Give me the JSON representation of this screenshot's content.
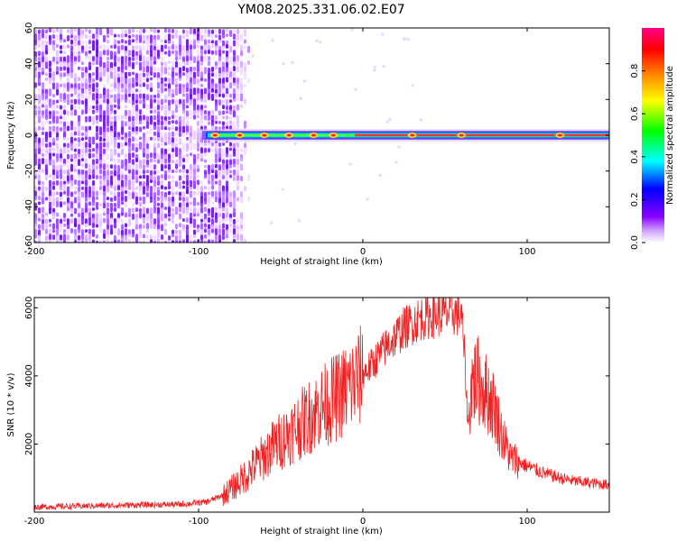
{
  "title": "YM08.2025.331.06.02.E07",
  "chart_data": [
    {
      "type": "heatmap",
      "title": "YM08.2025.331.06.02.E07",
      "xlabel": "Height of straight line (km)",
      "ylabel": "Frequency (Hz)",
      "xlim": [
        -200,
        150
      ],
      "ylim": [
        -60,
        60
      ],
      "xticks": [
        -200,
        -100,
        0,
        100
      ],
      "xtick_labels": [
        "-200",
        "-100",
        "0",
        "100"
      ],
      "yticks": [
        -60,
        -40,
        -20,
        0,
        20,
        40,
        60
      ],
      "ytick_labels": [
        "-60",
        "-40",
        "-20",
        "0",
        "20",
        "40",
        "60"
      ],
      "noise_region_x": [
        -200,
        -78
      ],
      "signal_line_y": 0,
      "signal_start_x": -100,
      "colorbar": {
        "label": "Normalized spectral amplitude",
        "range": [
          0,
          1
        ],
        "ticks": [
          0.0,
          0.2,
          0.4,
          0.6,
          0.8
        ],
        "tick_labels": [
          "0.0",
          "0.2",
          "0.4",
          "0.6",
          "0.8"
        ],
        "colors": [
          "#ffffff",
          "#8800ff",
          "#0000ff",
          "#00ffff",
          "#00ff00",
          "#ffff00",
          "#ff8800",
          "#ff0000",
          "#ff0088"
        ]
      }
    },
    {
      "type": "line",
      "xlabel": "Height of straight line (km)",
      "ylabel": "SNR (10 * v/v)",
      "xlim": [
        -200,
        150
      ],
      "ylim": [
        0,
        6300
      ],
      "xticks": [
        -200,
        -100,
        0,
        100
      ],
      "xtick_labels": [
        "-200",
        "-100",
        "0",
        "100"
      ],
      "yticks": [
        2000,
        4000,
        6000
      ],
      "ytick_labels": [
        "2000",
        "4000",
        "6000"
      ],
      "color": "#ee2222",
      "series": [
        {
          "name": "SNR",
          "x": [
            -200,
            -150,
            -110,
            -95,
            -85,
            -75,
            -65,
            -55,
            -45,
            -35,
            -25,
            -15,
            -5,
            5,
            15,
            25,
            35,
            45,
            55,
            60,
            62,
            64,
            66,
            70,
            75,
            80,
            85,
            90,
            100,
            110,
            120,
            130,
            140,
            150
          ],
          "y": [
            150,
            200,
            230,
            300,
            500,
            900,
            1400,
            1900,
            2300,
            2700,
            3100,
            3400,
            3800,
            4300,
            4900,
            5400,
            5700,
            5800,
            5850,
            5800,
            4500,
            2500,
            3800,
            3900,
            3500,
            3100,
            2200,
            1600,
            1350,
            1150,
            1000,
            900,
            850,
            800
          ]
        }
      ]
    }
  ]
}
